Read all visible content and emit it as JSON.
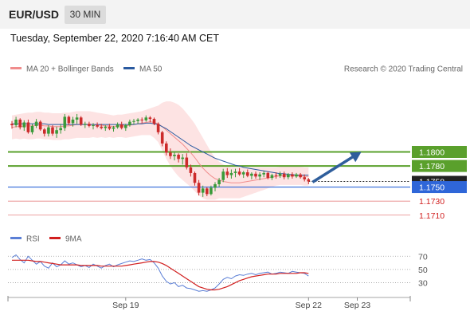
{
  "header": {
    "symbol": "EUR/USD",
    "timeframe": "30 MIN"
  },
  "datetime": "Tuesday, September 22, 2020 7:16:40 AM CET",
  "credit": "Research © 2020 Trading Central",
  "legend_price": [
    {
      "label": "MA 20 + Bollinger Bands",
      "color": "#f08c8c"
    },
    {
      "label": "MA 50",
      "color": "#2a5aa0"
    }
  ],
  "legend_rsi": [
    {
      "label": "RSI",
      "color": "#5b7fd6"
    },
    {
      "label": "9MA",
      "color": "#d11f1f"
    }
  ],
  "colors": {
    "resistance": "#5aa02c",
    "pivot": "#2f66d8",
    "support": "#d11f1f",
    "candle_up": "#3a9a3a",
    "candle_down": "#cc2b2b",
    "arrow": "#2f5e9c",
    "band_fill": "#fde3e3"
  },
  "chart_data": [
    {
      "type": "candlestick",
      "ylim": [
        1.1695,
        1.1905
      ],
      "x_ticks": [
        "Sep 19",
        "Sep 22",
        "Sep 23"
      ],
      "levels": [
        {
          "value": 1.18,
          "label": "1.1800",
          "kind": "resistance"
        },
        {
          "value": 1.178,
          "label": "1.1780",
          "kind": "resistance"
        },
        {
          "value": 1.1758,
          "label": "1.1758",
          "kind": "last"
        },
        {
          "value": 1.175,
          "label": "1.1750",
          "kind": "pivot"
        },
        {
          "value": 1.173,
          "label": "1.1730",
          "kind": "support"
        },
        {
          "value": 1.171,
          "label": "1.1710",
          "kind": "support"
        }
      ],
      "forecast_arrow": {
        "from_index": 74,
        "from_value": 1.1757,
        "to_index": 86,
        "to_value": 1.18
      },
      "ohlc": [
        [
          1.184,
          1.1844,
          1.1833,
          1.1838
        ],
        [
          1.1838,
          1.185,
          1.1835,
          1.1846
        ],
        [
          1.1846,
          1.1848,
          1.1832,
          1.1835
        ],
        [
          1.1835,
          1.1845,
          1.183,
          1.1842
        ],
        [
          1.1842,
          1.1846,
          1.1826,
          1.1828
        ],
        [
          1.1828,
          1.184,
          1.1825,
          1.1837
        ],
        [
          1.1837,
          1.1847,
          1.1834,
          1.1843
        ],
        [
          1.1843,
          1.1845,
          1.183,
          1.1832
        ],
        [
          1.1832,
          1.1834,
          1.1822,
          1.1826
        ],
        [
          1.1826,
          1.1838,
          1.1822,
          1.1835
        ],
        [
          1.1835,
          1.1838,
          1.1823,
          1.1826
        ],
        [
          1.1826,
          1.1836,
          1.182,
          1.1831
        ],
        [
          1.1831,
          1.184,
          1.1826,
          1.1834
        ],
        [
          1.1834,
          1.1854,
          1.183,
          1.185
        ],
        [
          1.185,
          1.1852,
          1.1838,
          1.1841
        ],
        [
          1.1841,
          1.185,
          1.1836,
          1.1846
        ],
        [
          1.1846,
          1.1854,
          1.184,
          1.1849
        ],
        [
          1.1849,
          1.1851,
          1.1837,
          1.1839
        ],
        [
          1.1839,
          1.1843,
          1.1834,
          1.184
        ],
        [
          1.184,
          1.1843,
          1.1835,
          1.1837
        ],
        [
          1.1837,
          1.1841,
          1.1832,
          1.1838
        ],
        [
          1.1838,
          1.1842,
          1.1834,
          1.1836
        ],
        [
          1.1836,
          1.184,
          1.1832,
          1.1834
        ],
        [
          1.1834,
          1.1838,
          1.183,
          1.1836
        ],
        [
          1.1836,
          1.184,
          1.1831,
          1.1833
        ],
        [
          1.1833,
          1.1837,
          1.1829,
          1.1835
        ],
        [
          1.1835,
          1.1842,
          1.1833,
          1.1839
        ],
        [
          1.1839,
          1.1843,
          1.1832,
          1.1834
        ],
        [
          1.1834,
          1.184,
          1.183,
          1.1838
        ],
        [
          1.1838,
          1.1846,
          1.1836,
          1.1843
        ],
        [
          1.1843,
          1.1847,
          1.1839,
          1.1844
        ],
        [
          1.1844,
          1.1848,
          1.184,
          1.1846
        ],
        [
          1.1846,
          1.1849,
          1.1841,
          1.1845
        ],
        [
          1.1845,
          1.1852,
          1.1843,
          1.1849
        ],
        [
          1.1849,
          1.1851,
          1.1842,
          1.1847
        ],
        [
          1.1847,
          1.1849,
          1.1838,
          1.184
        ],
        [
          1.184,
          1.1842,
          1.1825,
          1.1828
        ],
        [
          1.1828,
          1.183,
          1.1808,
          1.1812
        ],
        [
          1.1812,
          1.1815,
          1.1795,
          1.1799
        ],
        [
          1.1799,
          1.1805,
          1.179,
          1.1794
        ],
        [
          1.1794,
          1.18,
          1.1788,
          1.1796
        ],
        [
          1.1796,
          1.1798,
          1.1785,
          1.179
        ],
        [
          1.179,
          1.1797,
          1.1782,
          1.1792
        ],
        [
          1.1792,
          1.1798,
          1.1775,
          1.1778
        ],
        [
          1.1778,
          1.1782,
          1.1765,
          1.177
        ],
        [
          1.177,
          1.1772,
          1.1752,
          1.1756
        ],
        [
          1.1756,
          1.176,
          1.1738,
          1.1742
        ],
        [
          1.1742,
          1.1752,
          1.1736,
          1.1748
        ],
        [
          1.1748,
          1.175,
          1.1737,
          1.174
        ],
        [
          1.174,
          1.1752,
          1.1738,
          1.1749
        ],
        [
          1.1749,
          1.1757,
          1.1744,
          1.1754
        ],
        [
          1.1754,
          1.1763,
          1.175,
          1.176
        ],
        [
          1.176,
          1.1776,
          1.1757,
          1.1772
        ],
        [
          1.1772,
          1.1777,
          1.1763,
          1.1767
        ],
        [
          1.1767,
          1.1775,
          1.1762,
          1.177
        ],
        [
          1.177,
          1.1776,
          1.1764,
          1.1772
        ],
        [
          1.1772,
          1.1777,
          1.1766,
          1.1768
        ],
        [
          1.1768,
          1.1773,
          1.1763,
          1.1771
        ],
        [
          1.1771,
          1.1775,
          1.1764,
          1.1766
        ],
        [
          1.1766,
          1.1771,
          1.1761,
          1.1769
        ],
        [
          1.1769,
          1.1772,
          1.1762,
          1.1765
        ],
        [
          1.1765,
          1.1771,
          1.176,
          1.1768
        ],
        [
          1.1768,
          1.1773,
          1.1764,
          1.177
        ],
        [
          1.177,
          1.1772,
          1.1761,
          1.1763
        ],
        [
          1.1763,
          1.1769,
          1.176,
          1.1767
        ],
        [
          1.1767,
          1.1771,
          1.1762,
          1.1766
        ],
        [
          1.1766,
          1.1772,
          1.1763,
          1.1769
        ],
        [
          1.1769,
          1.1772,
          1.1761,
          1.1764
        ],
        [
          1.1764,
          1.177,
          1.1761,
          1.1768
        ],
        [
          1.1768,
          1.1771,
          1.1762,
          1.1765
        ],
        [
          1.1765,
          1.177,
          1.1763,
          1.1768
        ],
        [
          1.1768,
          1.177,
          1.1762,
          1.1764
        ],
        [
          1.1764,
          1.1768,
          1.1758,
          1.1761
        ],
        [
          1.1761,
          1.1763,
          1.1754,
          1.1758
        ]
      ],
      "ma20": [
        1.1835,
        1.1836,
        1.1836,
        1.1837,
        1.1837,
        1.1837,
        1.1838,
        1.1838,
        1.1837,
        1.1837,
        1.1836,
        1.1836,
        1.1836,
        1.1837,
        1.1837,
        1.1838,
        1.1839,
        1.1839,
        1.1839,
        1.1839,
        1.1839,
        1.1838,
        1.1838,
        1.1837,
        1.1837,
        1.1836,
        1.1837,
        1.1837,
        1.1837,
        1.1838,
        1.1839,
        1.184,
        1.1841,
        1.1842,
        1.1843,
        1.1842,
        1.184,
        1.1836,
        1.1831,
        1.1826,
        1.1821,
        1.1816,
        1.1811,
        1.1805,
        1.1799,
        1.1792,
        1.1784,
        1.1777,
        1.1771,
        1.1766,
        1.1762,
        1.176,
        1.1758,
        1.1757,
        1.1756,
        1.1756,
        1.1756,
        1.1757,
        1.1758,
        1.1759,
        1.176,
        1.1761,
        1.1762,
        1.1763,
        1.1764,
        1.1765,
        1.1766,
        1.1766,
        1.1766,
        1.1766,
        1.1766,
        1.1766,
        1.1765,
        1.1765
      ],
      "band_upper": [
        1.1852,
        1.1853,
        1.1854,
        1.1855,
        1.1856,
        1.1856,
        1.1857,
        1.1857,
        1.1856,
        1.1856,
        1.1855,
        1.1855,
        1.1855,
        1.1856,
        1.1856,
        1.1857,
        1.1858,
        1.1858,
        1.1858,
        1.1858,
        1.1857,
        1.1856,
        1.1855,
        1.1854,
        1.1853,
        1.1852,
        1.1853,
        1.1853,
        1.1854,
        1.1855,
        1.1856,
        1.1857,
        1.1858,
        1.186,
        1.1862,
        1.1864,
        1.1866,
        1.187,
        1.1872,
        1.1872,
        1.187,
        1.1867,
        1.1862,
        1.1855,
        1.1848,
        1.184,
        1.183,
        1.182,
        1.181,
        1.18,
        1.1792,
        1.1786,
        1.1782,
        1.178,
        1.1778,
        1.1778,
        1.1778,
        1.1778,
        1.1778,
        1.1778,
        1.1778,
        1.1778,
        1.1778,
        1.1778,
        1.1778,
        1.1778,
        1.1779,
        1.1779,
        1.1779,
        1.1779,
        1.1779,
        1.1779,
        1.1778,
        1.1778
      ],
      "band_lower": [
        1.1818,
        1.1819,
        1.1818,
        1.1819,
        1.1818,
        1.1818,
        1.1819,
        1.1819,
        1.1818,
        1.1818,
        1.1817,
        1.1817,
        1.1817,
        1.1818,
        1.1818,
        1.1819,
        1.182,
        1.182,
        1.182,
        1.182,
        1.1821,
        1.182,
        1.1821,
        1.182,
        1.1821,
        1.182,
        1.1821,
        1.1821,
        1.182,
        1.1821,
        1.1822,
        1.1823,
        1.1824,
        1.1824,
        1.1824,
        1.182,
        1.1814,
        1.1802,
        1.179,
        1.178,
        1.1772,
        1.1765,
        1.176,
        1.1755,
        1.175,
        1.1744,
        1.1738,
        1.1734,
        1.1732,
        1.1732,
        1.1732,
        1.1734,
        1.1734,
        1.1734,
        1.1734,
        1.1734,
        1.1734,
        1.1736,
        1.1738,
        1.174,
        1.1742,
        1.1744,
        1.1746,
        1.1748,
        1.175,
        1.1752,
        1.1753,
        1.1753,
        1.1753,
        1.1753,
        1.1753,
        1.1753,
        1.1752,
        1.1752
      ],
      "ma50": [
        1.184,
        1.184,
        1.184,
        1.184,
        1.184,
        1.184,
        1.184,
        1.184,
        1.184,
        1.1839,
        1.1839,
        1.1839,
        1.1839,
        1.1839,
        1.1839,
        1.1839,
        1.1839,
        1.1839,
        1.1839,
        1.1839,
        1.1839,
        1.1839,
        1.1839,
        1.1839,
        1.1839,
        1.1839,
        1.1839,
        1.1839,
        1.1839,
        1.1839,
        1.1839,
        1.184,
        1.184,
        1.1841,
        1.1841,
        1.184,
        1.1839,
        1.1836,
        1.1833,
        1.1829,
        1.1825,
        1.1821,
        1.1817,
        1.1813,
        1.1809,
        1.1806,
        1.1803,
        1.18,
        1.1797,
        1.1794,
        1.1791,
        1.1789,
        1.1787,
        1.1785,
        1.1783,
        1.1781,
        1.178,
        1.1778,
        1.1777,
        1.1776,
        1.1775,
        1.1774,
        1.1773,
        1.1772,
        1.1771,
        1.177,
        1.1769,
        1.1769,
        1.1768,
        1.1768,
        1.1767,
        1.1767,
        1.1767,
        1.1767
      ]
    },
    {
      "type": "line",
      "name": "RSI panel",
      "ylim": [
        10,
        80
      ],
      "y_ticks": [
        70,
        50,
        30
      ],
      "series": [
        {
          "name": "RSI",
          "values": [
            68,
            72,
            65,
            60,
            70,
            64,
            58,
            62,
            55,
            52,
            60,
            54,
            57,
            63,
            58,
            60,
            57,
            54,
            56,
            53,
            58,
            55,
            52,
            56,
            58,
            54,
            57,
            59,
            61,
            63,
            62,
            64,
            66,
            64,
            65,
            60,
            52,
            40,
            32,
            28,
            30,
            24,
            26,
            22,
            21,
            19,
            17,
            18,
            17,
            19,
            22,
            28,
            35,
            38,
            36,
            40,
            42,
            41,
            43,
            44,
            42,
            44,
            45,
            46,
            43,
            44,
            46,
            45,
            44,
            47,
            46,
            45,
            44,
            40
          ]
        },
        {
          "name": "9MA",
          "values": [
            64,
            64,
            64,
            64,
            64,
            63,
            62,
            62,
            61,
            60,
            59,
            58,
            57,
            57,
            57,
            57,
            57,
            56,
            56,
            56,
            56,
            56,
            55,
            55,
            55,
            55,
            55,
            55,
            56,
            57,
            58,
            59,
            60,
            61,
            62,
            62,
            61,
            59,
            56,
            52,
            48,
            44,
            40,
            36,
            32,
            28,
            24,
            22,
            20,
            19,
            19,
            20,
            22,
            24,
            27,
            30,
            33,
            35,
            37,
            39,
            40,
            41,
            42,
            43,
            43,
            43,
            44,
            44,
            44,
            44,
            44,
            45,
            45,
            44
          ]
        }
      ]
    }
  ]
}
